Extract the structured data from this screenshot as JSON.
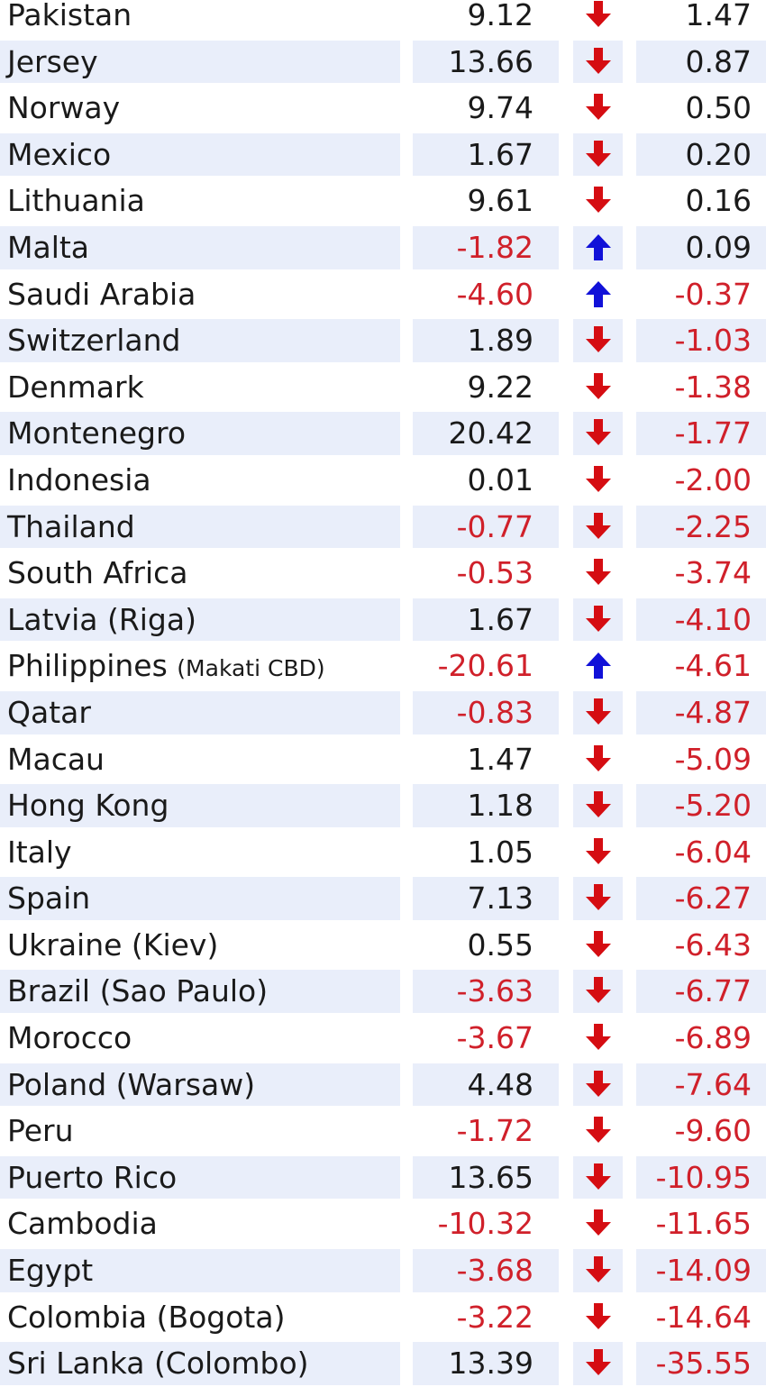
{
  "colors": {
    "shade": "#e9eefa",
    "negative_text": "#d0202a",
    "down_arrow": "#d50d12",
    "up_arrow": "#1111d8"
  },
  "rows": [
    {
      "country": "Pakistan",
      "note": "",
      "value1": "9.12",
      "arrow": "down",
      "value2": "1.47"
    },
    {
      "country": "Jersey",
      "note": "",
      "value1": "13.66",
      "arrow": "down",
      "value2": "0.87"
    },
    {
      "country": "Norway",
      "note": "",
      "value1": "9.74",
      "arrow": "down",
      "value2": "0.50"
    },
    {
      "country": "Mexico",
      "note": "",
      "value1": "1.67",
      "arrow": "down",
      "value2": "0.20"
    },
    {
      "country": "Lithuania",
      "note": "",
      "value1": "9.61",
      "arrow": "down",
      "value2": "0.16"
    },
    {
      "country": "Malta",
      "note": "",
      "value1": "-1.82",
      "arrow": "up",
      "value2": "0.09"
    },
    {
      "country": "Saudi Arabia",
      "note": "",
      "value1": "-4.60",
      "arrow": "up",
      "value2": "-0.37"
    },
    {
      "country": "Switzerland",
      "note": "",
      "value1": "1.89",
      "arrow": "down",
      "value2": "-1.03"
    },
    {
      "country": "Denmark",
      "note": "",
      "value1": "9.22",
      "arrow": "down",
      "value2": "-1.38"
    },
    {
      "country": "Montenegro",
      "note": "",
      "value1": "20.42",
      "arrow": "down",
      "value2": "-1.77"
    },
    {
      "country": "Indonesia",
      "note": "",
      "value1": "0.01",
      "arrow": "down",
      "value2": "-2.00"
    },
    {
      "country": "Thailand",
      "note": "",
      "value1": "-0.77",
      "arrow": "down",
      "value2": "-2.25"
    },
    {
      "country": "South Africa",
      "note": "",
      "value1": "-0.53",
      "arrow": "down",
      "value2": "-3.74"
    },
    {
      "country": "Latvia (Riga)",
      "note": "",
      "value1": "1.67",
      "arrow": "down",
      "value2": "-4.10"
    },
    {
      "country": "Philippines",
      "note": "(Makati CBD)",
      "value1": "-20.61",
      "arrow": "up",
      "value2": "-4.61"
    },
    {
      "country": "Qatar",
      "note": "",
      "value1": "-0.83",
      "arrow": "down",
      "value2": "-4.87"
    },
    {
      "country": "Macau",
      "note": "",
      "value1": "1.47",
      "arrow": "down",
      "value2": "-5.09"
    },
    {
      "country": "Hong Kong",
      "note": "",
      "value1": "1.18",
      "arrow": "down",
      "value2": "-5.20"
    },
    {
      "country": "Italy",
      "note": "",
      "value1": "1.05",
      "arrow": "down",
      "value2": "-6.04"
    },
    {
      "country": "Spain",
      "note": "",
      "value1": "7.13",
      "arrow": "down",
      "value2": "-6.27"
    },
    {
      "country": "Ukraine (Kiev)",
      "note": "",
      "value1": "0.55",
      "arrow": "down",
      "value2": "-6.43"
    },
    {
      "country": "Brazil (Sao Paulo)",
      "note": "",
      "value1": "-3.63",
      "arrow": "down",
      "value2": "-6.77"
    },
    {
      "country": "Morocco",
      "note": "",
      "value1": "-3.67",
      "arrow": "down",
      "value2": "-6.89"
    },
    {
      "country": "Poland (Warsaw)",
      "note": "",
      "value1": "4.48",
      "arrow": "down",
      "value2": "-7.64"
    },
    {
      "country": "Peru",
      "note": "",
      "value1": "-1.72",
      "arrow": "down",
      "value2": "-9.60"
    },
    {
      "country": "Puerto Rico",
      "note": "",
      "value1": "13.65",
      "arrow": "down",
      "value2": "-10.95"
    },
    {
      "country": "Cambodia",
      "note": "",
      "value1": "-10.32",
      "arrow": "down",
      "value2": "-11.65"
    },
    {
      "country": "Egypt",
      "note": "",
      "value1": "-3.68",
      "arrow": "down",
      "value2": "-14.09"
    },
    {
      "country": "Colombia (Bogota)",
      "note": "",
      "value1": "-3.22",
      "arrow": "down",
      "value2": "-14.64"
    },
    {
      "country": "Sri Lanka (Colombo)",
      "note": "",
      "value1": "13.39",
      "arrow": "down",
      "value2": "-35.55"
    }
  ]
}
